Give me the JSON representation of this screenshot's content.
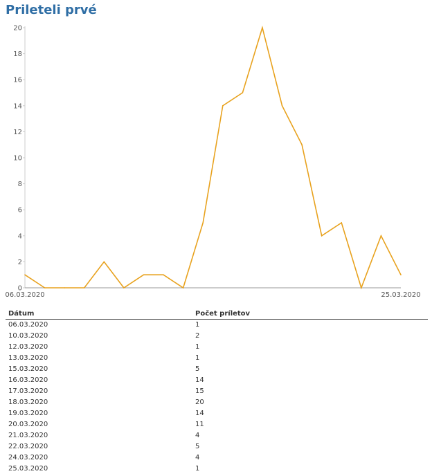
{
  "page": {
    "title": "Prileteli prvé"
  },
  "chart_data": {
    "type": "line",
    "title": "Prileteli prvé",
    "x": [
      "06.03.2020",
      "07.03.2020",
      "08.03.2020",
      "09.03.2020",
      "10.03.2020",
      "11.03.2020",
      "12.03.2020",
      "13.03.2020",
      "14.03.2020",
      "15.03.2020",
      "16.03.2020",
      "17.03.2020",
      "18.03.2020",
      "19.03.2020",
      "20.03.2020",
      "21.03.2020",
      "22.03.2020",
      "23.03.2020",
      "24.03.2020",
      "25.03.2020"
    ],
    "series": [
      {
        "values": [
          1,
          0,
          0,
          0,
          2,
          0,
          1,
          1,
          0,
          5,
          14,
          15,
          20,
          14,
          11,
          4,
          5,
          0,
          4,
          1
        ],
        "color": "#e8a21e"
      }
    ],
    "x_tick_labels": [
      "06.03.2020",
      "25.03.2020"
    ],
    "y_ticks": [
      0,
      2,
      4,
      6,
      8,
      10,
      12,
      14,
      16,
      18,
      20
    ],
    "ylim": [
      0,
      20
    ],
    "grid": false
  },
  "table": {
    "headers": [
      "Dátum",
      "Počet príletov"
    ],
    "rows": [
      [
        "06.03.2020",
        "1"
      ],
      [
        "10.03.2020",
        "2"
      ],
      [
        "12.03.2020",
        "1"
      ],
      [
        "13.03.2020",
        "1"
      ],
      [
        "15.03.2020",
        "5"
      ],
      [
        "16.03.2020",
        "14"
      ],
      [
        "17.03.2020",
        "15"
      ],
      [
        "18.03.2020",
        "20"
      ],
      [
        "19.03.2020",
        "14"
      ],
      [
        "20.03.2020",
        "11"
      ],
      [
        "21.03.2020",
        "4"
      ],
      [
        "22.03.2020",
        "5"
      ],
      [
        "24.03.2020",
        "4"
      ],
      [
        "25.03.2020",
        "1"
      ]
    ]
  }
}
